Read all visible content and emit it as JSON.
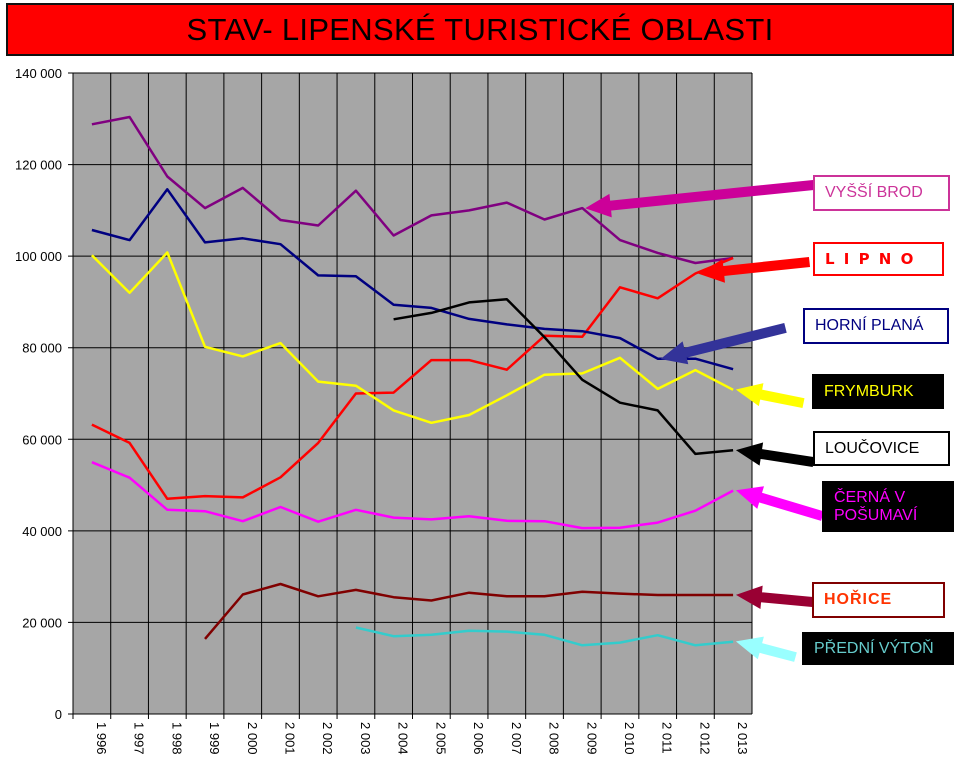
{
  "chart_data": {
    "type": "line",
    "title": "STAV- LIPENSKÉ TURISTICKÉ  OBLASTI",
    "xlabel": "",
    "ylabel": "",
    "ylim": [
      0,
      140000
    ],
    "yticks": [
      {
        "value": 0,
        "label": "0"
      },
      {
        "value": 20000,
        "label": "20 000"
      },
      {
        "value": 40000,
        "label": "40 000"
      },
      {
        "value": 60000,
        "label": "60 000"
      },
      {
        "value": 80000,
        "label": "80 000"
      },
      {
        "value": 100000,
        "label": "100 000"
      },
      {
        "value": 120000,
        "label": "120 000"
      },
      {
        "value": 140000,
        "label": "140 000"
      }
    ],
    "categories": [
      "1 996",
      "1 997",
      "1 998",
      "1 999",
      "2 000",
      "2 001",
      "2 002",
      "2 003",
      "2 004",
      "2 005",
      "2 006",
      "2 007",
      "2 008",
      "2 009",
      "2 010",
      "2 011",
      "2 012",
      "2 013"
    ],
    "grid": true,
    "background_color": "#a6a6a6",
    "legend": "right, labeled boxes with arrows",
    "series": [
      {
        "name": "VYŠŠÍ BROD",
        "color": "#800080",
        "values": [
          128800,
          130400,
          117400,
          110500,
          114900,
          107900,
          106700,
          114300,
          104500,
          108900,
          110000,
          111700,
          108000,
          110500,
          103500,
          100700,
          98500,
          99600
        ]
      },
      {
        "name": "L I P N O",
        "color": "#ff0000",
        "values": [
          63200,
          59200,
          47000,
          47600,
          47300,
          51700,
          59200,
          70000,
          70200,
          77300,
          77300,
          75200,
          82600,
          82400,
          93200,
          90800,
          96200,
          99600
        ]
      },
      {
        "name": "HORNÍ  PLANÁ",
        "color": "#000080",
        "values": [
          105700,
          103500,
          114600,
          103000,
          103900,
          102600,
          95800,
          95600,
          89400,
          88700,
          86300,
          85100,
          84100,
          83600,
          82100,
          77600,
          77600,
          75300
        ]
      },
      {
        "name": "FRYMBURK",
        "color": "#ffff00",
        "values": [
          100200,
          92000,
          100800,
          80200,
          78100,
          81000,
          72600,
          71700,
          66300,
          63600,
          65300,
          69600,
          74100,
          74400,
          77800,
          71000,
          75100,
          70800
        ]
      },
      {
        "name": "LOUČOVICE",
        "color": "#000000",
        "values": [
          null,
          null,
          null,
          null,
          null,
          null,
          null,
          null,
          86200,
          87600,
          89900,
          90600,
          82300,
          73000,
          68000,
          66300,
          56800,
          57600
        ]
      },
      {
        "name": "ČERNÁ V POŠUMAVÍ",
        "color": "#ff00ff",
        "values": [
          55000,
          51600,
          44600,
          44300,
          42100,
          45200,
          42000,
          44600,
          42900,
          42500,
          43200,
          42200,
          42100,
          40600,
          40700,
          41800,
          44400,
          48800
        ]
      },
      {
        "name": "HOŘICE",
        "color": "#800000",
        "values": [
          null,
          null,
          null,
          16400,
          26100,
          28400,
          25700,
          27100,
          25500,
          24800,
          26500,
          25700,
          25700,
          26700,
          26300,
          26000,
          26000,
          26000
        ]
      },
      {
        "name": "PŘEDNÍ VÝTOŇ",
        "color": "#33cccc",
        "values": [
          null,
          null,
          null,
          null,
          null,
          null,
          null,
          18900,
          17000,
          17300,
          18200,
          18000,
          17300,
          15000,
          15600,
          17200,
          15000,
          15800
        ]
      }
    ],
    "legend_entries": [
      {
        "series": 0,
        "label": "VYŠŠÍ BROD",
        "text_color": "#cc3399",
        "bg": "#ffffff",
        "border": "#cc3399",
        "bold": false,
        "spaced": false,
        "arrow_color": "#cc0099",
        "arrow_target_index": 13
      },
      {
        "series": 1,
        "label": "L I P N O",
        "text_color": "#ff0000",
        "bg": "#ffffff",
        "border": "#ff0000",
        "bold": true,
        "spaced": false,
        "arrow_color": "#ff0000",
        "arrow_target_index": 16
      },
      {
        "series": 2,
        "label": "HORNÍ  PLANÁ",
        "text_color": "#000080",
        "bg": "#ffffff",
        "border": "#000080",
        "bold": false,
        "spaced": false,
        "arrow_color": "#333399",
        "arrow_target_index": 15
      },
      {
        "series": 3,
        "label": "FRYMBURK",
        "text_color": "#ffff00",
        "bg": "#000000",
        "border": "#000000",
        "bold": false,
        "spaced": false,
        "arrow_color": "#ffff00",
        "arrow_target_index": 17
      },
      {
        "series": 4,
        "label": "LOUČOVICE",
        "text_color": "#000000",
        "bg": "#ffffff",
        "border": "#000000",
        "bold": false,
        "spaced": false,
        "arrow_color": "#000000",
        "arrow_target_index": 17
      },
      {
        "series": 5,
        "label": "ČERNÁ V POŠUMAVÍ",
        "text_color": "#ff00ff",
        "bg": "#000000",
        "border": "#000000",
        "bold": false,
        "spaced": false,
        "arrow_color": "#ff00ff",
        "arrow_target_index": 17
      },
      {
        "series": 6,
        "label": "HOŘICE",
        "text_color": "#ff3300",
        "bg": "#ffffff",
        "border": "#800000",
        "bold": true,
        "spaced": false,
        "arrow_color": "#990033",
        "arrow_target_index": 17
      },
      {
        "series": 7,
        "label": "PŘEDNÍ VÝTOŇ",
        "text_color": "#66cccc",
        "bg": "#000000",
        "border": "#000000",
        "bold": false,
        "spaced": false,
        "arrow_color": "#99ffff",
        "arrow_target_index": 17
      }
    ]
  }
}
